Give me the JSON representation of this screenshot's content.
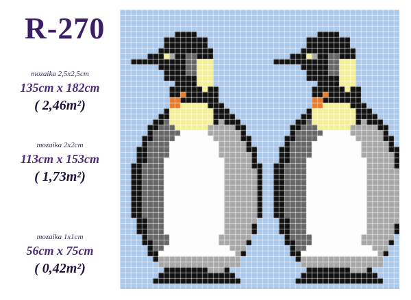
{
  "product_code": "R-270",
  "specs": [
    {
      "tile": "mozaika 2,5x2,5cm",
      "dims": "135cm x 182cm",
      "area": "( 2,46m²)"
    },
    {
      "tile": "mozaika 2x2cm",
      "dims": "113cm x 153cm",
      "area": "( 1,73m²)"
    },
    {
      "tile": "mozaika 1x1cm",
      "dims": "56cm x 75cm",
      "area": "( 0,42m²)"
    }
  ],
  "colors": {
    "title": "#3a1f66",
    "background": "#acc8ea",
    "black": "#111111",
    "dark_gray": "#666666",
    "gray": "#a7a7a7",
    "white": "#fdfdfd",
    "yellow": "#f4f09a",
    "orange": "#e97c2c",
    "grid": "#ffffff"
  },
  "mosaic": {
    "cols": 51,
    "rows": 51,
    "image": "two emperor penguins"
  }
}
